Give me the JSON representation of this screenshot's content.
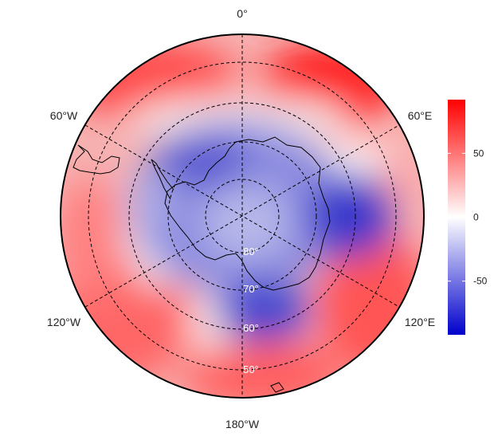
{
  "map": {
    "projection": "south-polar-stereographic",
    "longitude_labels": {
      "top": "0°",
      "upper_left": "60°W",
      "upper_right": "60°E",
      "lower_left": "120°W",
      "lower_right": "120°E",
      "bottom": "180°W"
    },
    "latitude_labels": [
      "80°",
      "70°",
      "60°",
      "50°"
    ],
    "grid": "dashed",
    "continent_outline": "Antarctica"
  },
  "colorbar": {
    "ticks": [
      "50",
      "0",
      "-50"
    ],
    "tick_values": [
      50,
      0,
      -50
    ],
    "range": [
      -92,
      92
    ],
    "colors": {
      "high": "#ff0000",
      "mid": "#ffffff",
      "low": "#0000cc"
    }
  }
}
